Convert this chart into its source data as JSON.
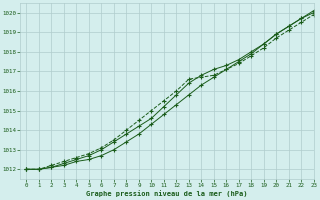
{
  "title": "Graphe pression niveau de la mer (hPa)",
  "bg_color": "#d4eeed",
  "grid_color": "#b0cccc",
  "line_color": "#1a5c1a",
  "xlim": [
    -0.5,
    23
  ],
  "ylim": [
    1011.5,
    1020.5
  ],
  "yticks": [
    1012,
    1013,
    1014,
    1015,
    1016,
    1017,
    1018,
    1019,
    1020
  ],
  "xticks": [
    0,
    1,
    2,
    3,
    4,
    5,
    6,
    7,
    8,
    9,
    10,
    11,
    12,
    13,
    14,
    15,
    16,
    17,
    18,
    19,
    20,
    21,
    22,
    23
  ],
  "series1": [
    1012.0,
    1012.0,
    1012.1,
    1012.2,
    1012.4,
    1012.5,
    1012.7,
    1013.0,
    1013.4,
    1013.8,
    1014.3,
    1014.8,
    1015.3,
    1015.8,
    1016.3,
    1016.7,
    1017.1,
    1017.5,
    1017.9,
    1018.4,
    1018.9,
    1019.3,
    1019.7,
    1020.1
  ],
  "series2": [
    1012.0,
    1012.0,
    1012.1,
    1012.3,
    1012.5,
    1012.7,
    1013.0,
    1013.4,
    1013.8,
    1014.2,
    1014.6,
    1015.2,
    1015.8,
    1016.4,
    1016.8,
    1017.1,
    1017.3,
    1017.6,
    1018.0,
    1018.4,
    1018.9,
    1019.3,
    1019.7,
    1020.0
  ],
  "series3": [
    1012.0,
    1012.0,
    1012.2,
    1012.4,
    1012.6,
    1012.8,
    1013.1,
    1013.5,
    1014.0,
    1014.5,
    1015.0,
    1015.5,
    1016.0,
    1016.6,
    1016.7,
    1016.8,
    1017.1,
    1017.4,
    1017.8,
    1018.2,
    1018.7,
    1019.1,
    1019.5,
    1019.9
  ],
  "figwidth": 3.2,
  "figheight": 2.0,
  "dpi": 100
}
